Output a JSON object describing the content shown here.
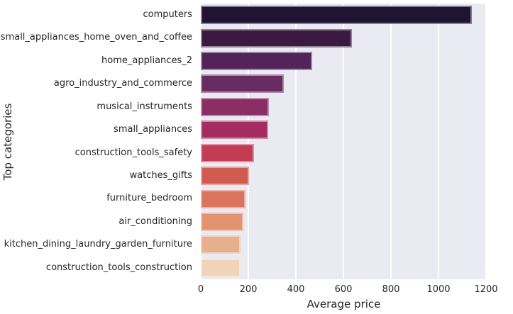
{
  "chart_data": {
    "type": "bar",
    "orientation": "horizontal",
    "xlabel": "Average price",
    "ylabel": "Top categories",
    "categories": [
      "computers",
      "small_appliances_home_oven_and_coffee",
      "home_appliances_2",
      "agro_industry_and_commerce",
      "musical_instruments",
      "small_appliances",
      "construction_tools_safety",
      "watches_gifts",
      "furniture_bedroom",
      "air_conditioning",
      "kitchen_dining_laundry_garden_furniture",
      "construction_tools_construction"
    ],
    "values": [
      1140,
      636,
      468,
      350,
      288,
      284,
      224,
      202,
      188,
      178,
      168,
      166
    ],
    "xlim": [
      0,
      1200
    ],
    "xticks": [
      0,
      200,
      400,
      600,
      800,
      1000,
      1200
    ],
    "bar_colors": [
      "#1f1433",
      "#3a1a40",
      "#532459",
      "#692c61",
      "#8b2e63",
      "#a52c60",
      "#c23c53",
      "#d15a51",
      "#da745f",
      "#e29370",
      "#e6b08c",
      "#f0d3b9"
    ],
    "grid": true,
    "legend": "none",
    "plot_bg_color": "#eaeaf2",
    "grid_color": "#ffffff",
    "text_color": "#262626"
  }
}
